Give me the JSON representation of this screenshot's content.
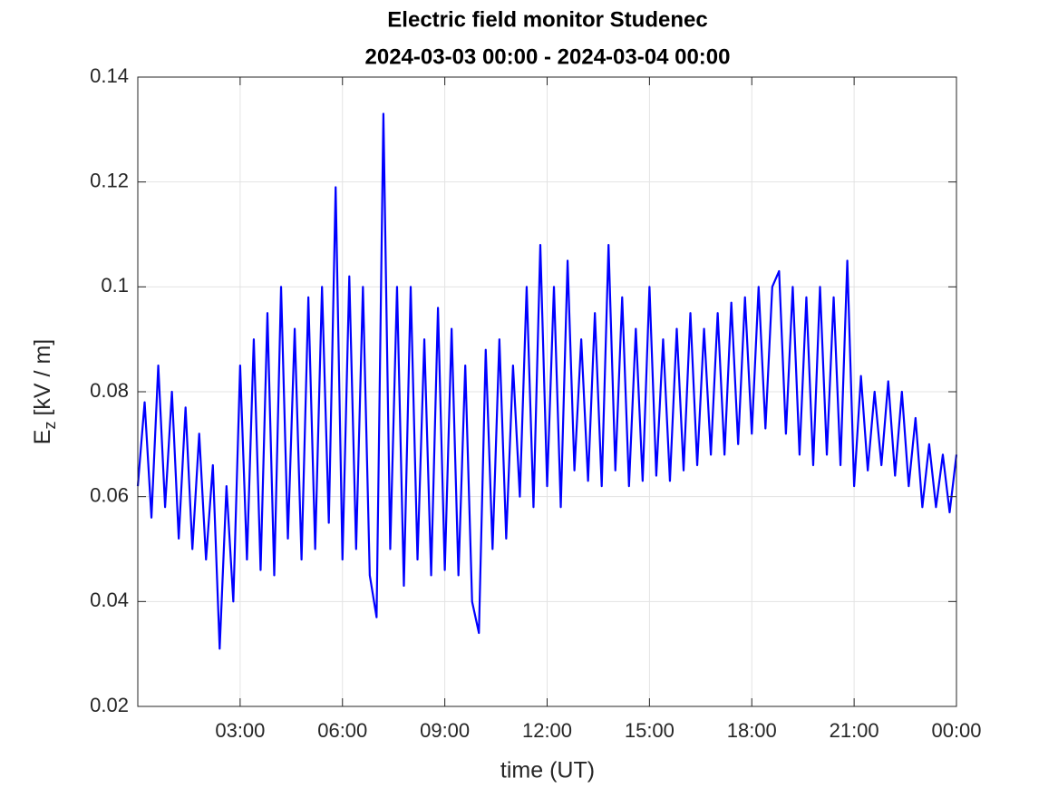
{
  "chart_data": {
    "type": "line",
    "title": "Electric field monitor Studenec",
    "subtitle": "2024-03-03 00:00 - 2024-03-04 00:00",
    "xlabel": "time (UT)",
    "ylabel": {
      "base": "E",
      "subscript": "z",
      "unit": "[kV / m]"
    },
    "color": "#0000ff",
    "grid": true,
    "xlim": [
      0,
      24
    ],
    "ylim": [
      0.02,
      0.14
    ],
    "xticks": [
      {
        "value": 3,
        "label": "03:00"
      },
      {
        "value": 6,
        "label": "06:00"
      },
      {
        "value": 9,
        "label": "09:00"
      },
      {
        "value": 12,
        "label": "12:00"
      },
      {
        "value": 15,
        "label": "15:00"
      },
      {
        "value": 18,
        "label": "18:00"
      },
      {
        "value": 21,
        "label": "21:00"
      },
      {
        "value": 24,
        "label": "00:00"
      }
    ],
    "yticks": [
      0.02,
      0.04,
      0.06,
      0.08,
      0.1,
      0.12,
      0.14
    ],
    "x": [
      0,
      0.2,
      0.4,
      0.6,
      0.8,
      1,
      1.2,
      1.4,
      1.6,
      1.8,
      2,
      2.2,
      2.4,
      2.6,
      2.8,
      3,
      3.2,
      3.4,
      3.6,
      3.8,
      4,
      4.2,
      4.4,
      4.6,
      4.8,
      5,
      5.2,
      5.4,
      5.6,
      5.8,
      6,
      6.2,
      6.4,
      6.6,
      6.8,
      7,
      7.2,
      7.4,
      7.6,
      7.8,
      8,
      8.2,
      8.4,
      8.6,
      8.8,
      9,
      9.2,
      9.4,
      9.6,
      9.8,
      10,
      10.2,
      10.4,
      10.6,
      10.8,
      11,
      11.2,
      11.4,
      11.6,
      11.8,
      12,
      12.2,
      12.4,
      12.6,
      12.8,
      13,
      13.2,
      13.4,
      13.6,
      13.8,
      14,
      14.2,
      14.4,
      14.6,
      14.8,
      15,
      15.2,
      15.4,
      15.6,
      15.8,
      16,
      16.2,
      16.4,
      16.6,
      16.8,
      17,
      17.2,
      17.4,
      17.6,
      17.8,
      18,
      18.2,
      18.4,
      18.6,
      18.8,
      19,
      19.2,
      19.4,
      19.6,
      19.8,
      20,
      20.2,
      20.4,
      20.6,
      20.8,
      21,
      21.2,
      21.4,
      21.6,
      21.8,
      22,
      22.2,
      22.4,
      22.6,
      22.8,
      23,
      23.2,
      23.4,
      23.6,
      23.8,
      24
    ],
    "values": [
      0.062,
      0.078,
      0.056,
      0.085,
      0.058,
      0.08,
      0.052,
      0.077,
      0.05,
      0.072,
      0.048,
      0.066,
      0.031,
      0.062,
      0.04,
      0.085,
      0.048,
      0.09,
      0.046,
      0.095,
      0.045,
      0.1,
      0.052,
      0.092,
      0.048,
      0.098,
      0.05,
      0.1,
      0.055,
      0.119,
      0.048,
      0.102,
      0.05,
      0.1,
      0.045,
      0.037,
      0.133,
      0.05,
      0.1,
      0.043,
      0.1,
      0.048,
      0.09,
      0.045,
      0.096,
      0.046,
      0.092,
      0.045,
      0.085,
      0.04,
      0.034,
      0.088,
      0.05,
      0.09,
      0.052,
      0.085,
      0.06,
      0.1,
      0.058,
      0.108,
      0.062,
      0.1,
      0.058,
      0.105,
      0.065,
      0.09,
      0.063,
      0.095,
      0.062,
      0.108,
      0.065,
      0.098,
      0.062,
      0.092,
      0.063,
      0.1,
      0.064,
      0.09,
      0.063,
      0.092,
      0.065,
      0.095,
      0.066,
      0.092,
      0.068,
      0.095,
      0.068,
      0.097,
      0.07,
      0.098,
      0.072,
      0.1,
      0.073,
      0.1,
      0.103,
      0.072,
      0.1,
      0.068,
      0.098,
      0.066,
      0.1,
      0.068,
      0.098,
      0.066,
      0.105,
      0.062,
      0.083,
      0.065,
      0.08,
      0.066,
      0.082,
      0.064,
      0.08,
      0.062,
      0.075,
      0.058,
      0.07,
      0.058,
      0.068,
      0.057,
      0.068
    ]
  }
}
